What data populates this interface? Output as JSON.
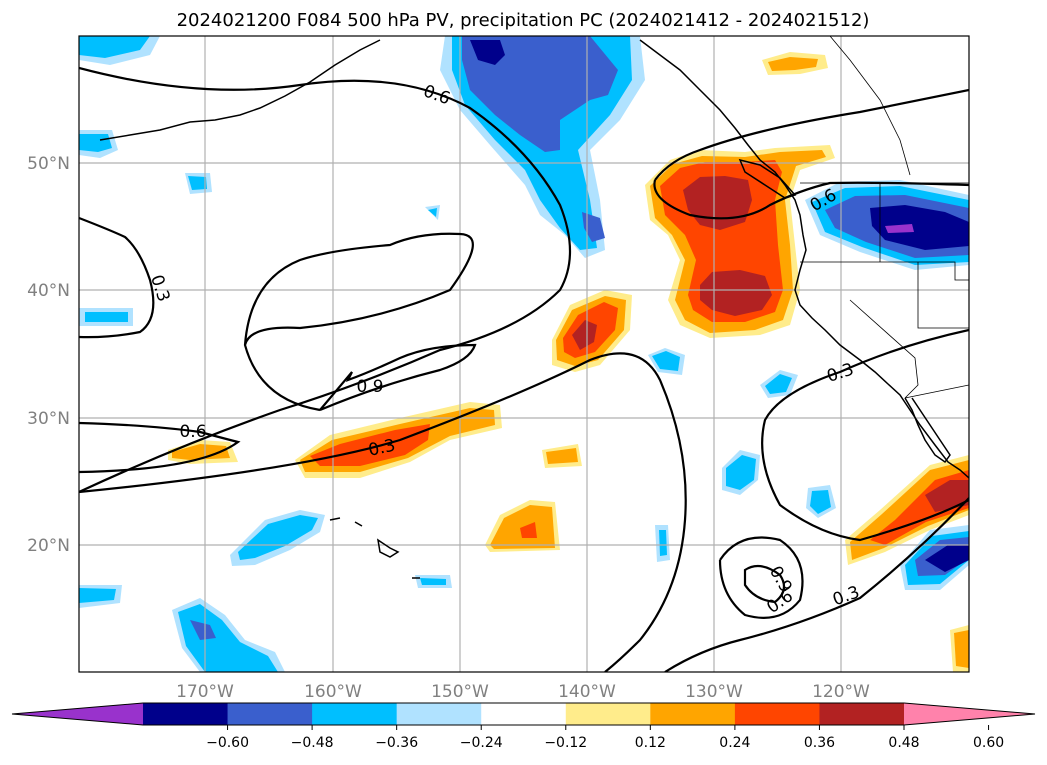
{
  "title": "2024021200 F084 500 hPa PV, precipitation PC (2024021412 - 2024021512)",
  "map": {
    "lat_labels": [
      "50°N",
      "40°N",
      "30°N",
      "20°N"
    ],
    "lon_labels": [
      "170°W",
      "160°W",
      "150°W",
      "140°W",
      "130°W",
      "120°W"
    ],
    "contour_labels": [
      "0.6",
      "0.3",
      "0.9",
      "0.6",
      "0.3",
      "0.6",
      "0.3",
      "0.9",
      "0.6",
      "0.3"
    ],
    "grid": true
  },
  "colorbar": {
    "ticks": [
      "−0.60",
      "−0.48",
      "−0.36",
      "−0.24",
      "−0.12",
      "0.12",
      "0.24",
      "0.36",
      "0.48",
      "0.60"
    ],
    "colors": [
      "#9932cc",
      "#00008b",
      "#3a5fcd",
      "#00bfff",
      "#b0e2ff",
      "#ffffff",
      "#ffec8b",
      "#ffa500",
      "#ff4500",
      "#b22222",
      "#ff82ab"
    ],
    "extend": "both"
  },
  "colors": {
    "neg_light": "#b0e2ff",
    "neg_mid": "#00bfff",
    "neg_strong": "#3a5fcd",
    "neg_max": "#00008b",
    "neg_extreme": "#9932cc",
    "pos_light": "#ffec8b",
    "pos_mid": "#ffa500",
    "pos_strong": "#ff4500",
    "pos_max": "#b22222",
    "pos_extreme": "#ff82ab"
  }
}
